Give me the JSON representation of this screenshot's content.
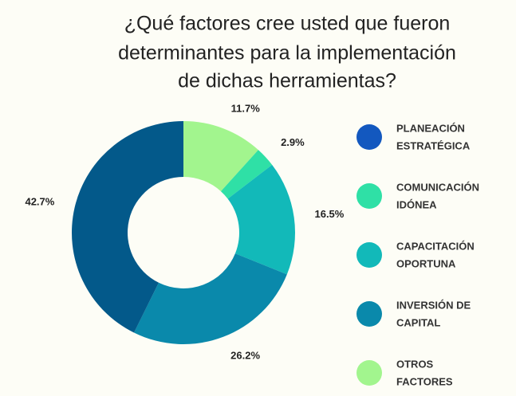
{
  "chart_data": {
    "type": "donut",
    "title": [
      "¿Qué factores cree usted que fueron",
      "determinantes para la implementación",
      "de dichas herramientas?"
    ],
    "categories": [
      [
        "PLANEACIÓN",
        "ESTRATÉGICA"
      ],
      [
        "COMUNICACIÓN",
        "IDÓNEA"
      ],
      [
        "CAPACITACIÓN",
        "OPORTUNA"
      ],
      [
        "INVERSIÓN DE",
        "CAPITAL"
      ],
      [
        "OTROS",
        "FACTORES"
      ]
    ],
    "values": [
      42.7,
      2.9,
      16.5,
      26.2,
      11.7
    ],
    "value_labels": [
      "42.7%",
      "2.9%",
      "16.5%",
      "26.2%",
      "11.7%"
    ],
    "legend_colors": [
      "#1358bf",
      "#2fe0a6",
      "#12b9b9",
      "#0a89ab",
      "#a2f58e"
    ],
    "colors": [
      "#03598a",
      "#2fe0a6",
      "#12b9b9",
      "#0a89ab",
      "#a2f58e"
    ],
    "legend": "right"
  }
}
